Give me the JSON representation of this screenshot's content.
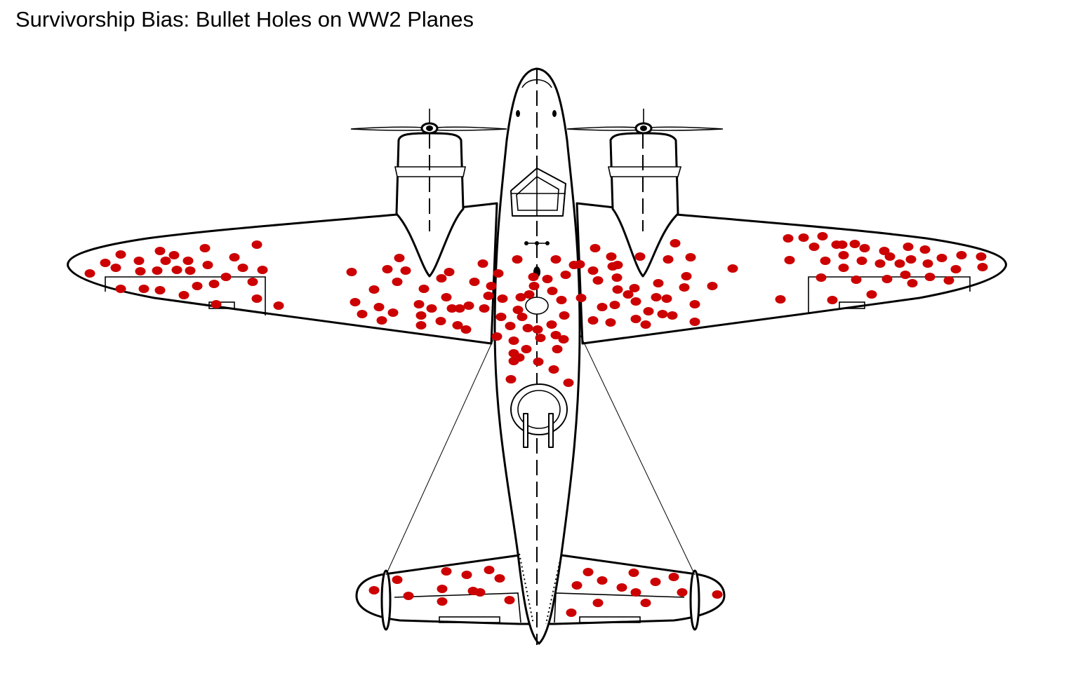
{
  "title": "Survivorship Bias: Bullet Holes on WW2 Planes",
  "colors": {
    "hole": "#cc0000",
    "outline": "#000000",
    "background": "#ffffff"
  },
  "icons": {
    "plane": "ww2-bomber-top-view",
    "hole": "bullet-hole-dot"
  }
}
